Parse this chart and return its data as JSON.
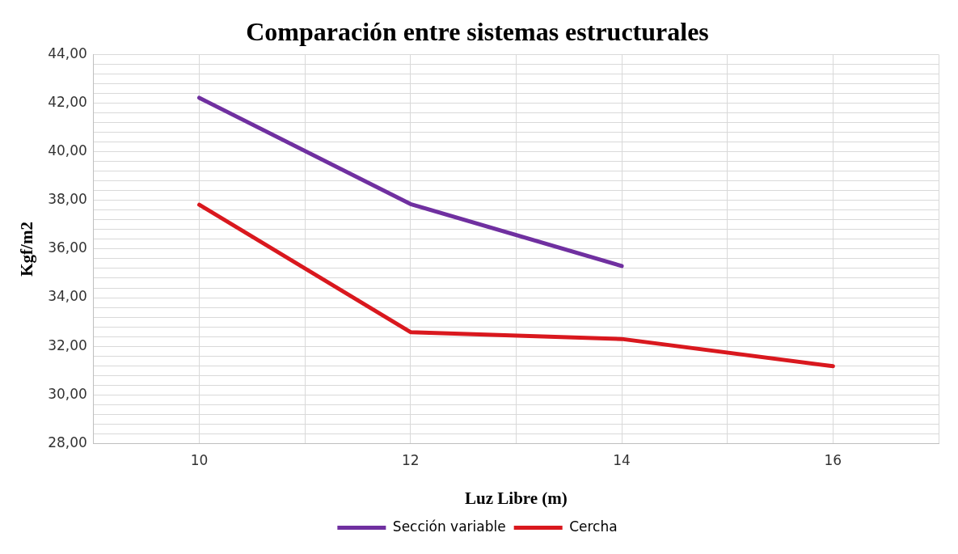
{
  "chart_data": {
    "type": "line",
    "title": "Comparación entre sistemas estructurales",
    "xlabel": "Luz Libre (m)",
    "ylabel": "Kgf/m2",
    "x": [
      10,
      12,
      14,
      16
    ],
    "series": [
      {
        "name": "Sección variable",
        "color": "#7030a0",
        "values": [
          42.22,
          37.85,
          35.3,
          null
        ]
      },
      {
        "name": "Cercha",
        "color": "#d9181e",
        "values": [
          37.82,
          32.58,
          32.3,
          31.18
        ]
      }
    ],
    "xlim": [
      9,
      17
    ],
    "xticks": [
      {
        "value": 9,
        "label": null
      },
      10,
      {
        "value": 11,
        "label": null
      },
      12,
      {
        "value": 13,
        "label": null
      },
      14,
      {
        "value": 15,
        "label": null
      },
      16,
      {
        "value": 17,
        "label": null
      }
    ],
    "ylim": [
      28,
      44
    ],
    "yticks": [
      {
        "value": 28,
        "label": "28,00"
      },
      {
        "value": 28.4,
        "label": null
      },
      {
        "value": 28.8,
        "label": null
      },
      {
        "value": 29.2,
        "label": null
      },
      {
        "value": 29.6,
        "label": null
      },
      {
        "value": 30,
        "label": "30,00"
      },
      {
        "value": 30.4,
        "label": null
      },
      {
        "value": 30.8,
        "label": null
      },
      {
        "value": 31.2,
        "label": null
      },
      {
        "value": 31.6,
        "label": null
      },
      {
        "value": 32,
        "label": "32,00"
      },
      {
        "value": 32.4,
        "label": null
      },
      {
        "value": 32.8,
        "label": null
      },
      {
        "value": 33.2,
        "label": null
      },
      {
        "value": 33.6,
        "label": null
      },
      {
        "value": 34,
        "label": "34,00"
      },
      {
        "value": 34.4,
        "label": null
      },
      {
        "value": 34.8,
        "label": null
      },
      {
        "value": 35.2,
        "label": null
      },
      {
        "value": 35.6,
        "label": null
      },
      {
        "value": 36,
        "label": "36,00"
      },
      {
        "value": 36.4,
        "label": null
      },
      {
        "value": 36.8,
        "label": null
      },
      {
        "value": 37.2,
        "label": null
      },
      {
        "value": 37.6,
        "label": null
      },
      {
        "value": 38,
        "label": "38,00"
      },
      {
        "value": 38.4,
        "label": null
      },
      {
        "value": 38.8,
        "label": null
      },
      {
        "value": 39.2,
        "label": null
      },
      {
        "value": 39.6,
        "label": null
      },
      {
        "value": 40,
        "label": "40,00"
      },
      {
        "value": 40.4,
        "label": null
      },
      {
        "value": 40.8,
        "label": null
      },
      {
        "value": 41.2,
        "label": null
      },
      {
        "value": 41.6,
        "label": null
      },
      {
        "value": 42,
        "label": "42,00"
      },
      {
        "value": 42.4,
        "label": null
      },
      {
        "value": 42.8,
        "label": null
      },
      {
        "value": 43.2,
        "label": null
      },
      {
        "value": 43.6,
        "label": null
      },
      {
        "value": 44,
        "label": "44,00"
      }
    ],
    "grid": true,
    "legend": "bottom",
    "marker": "none",
    "line_style": "solid"
  }
}
